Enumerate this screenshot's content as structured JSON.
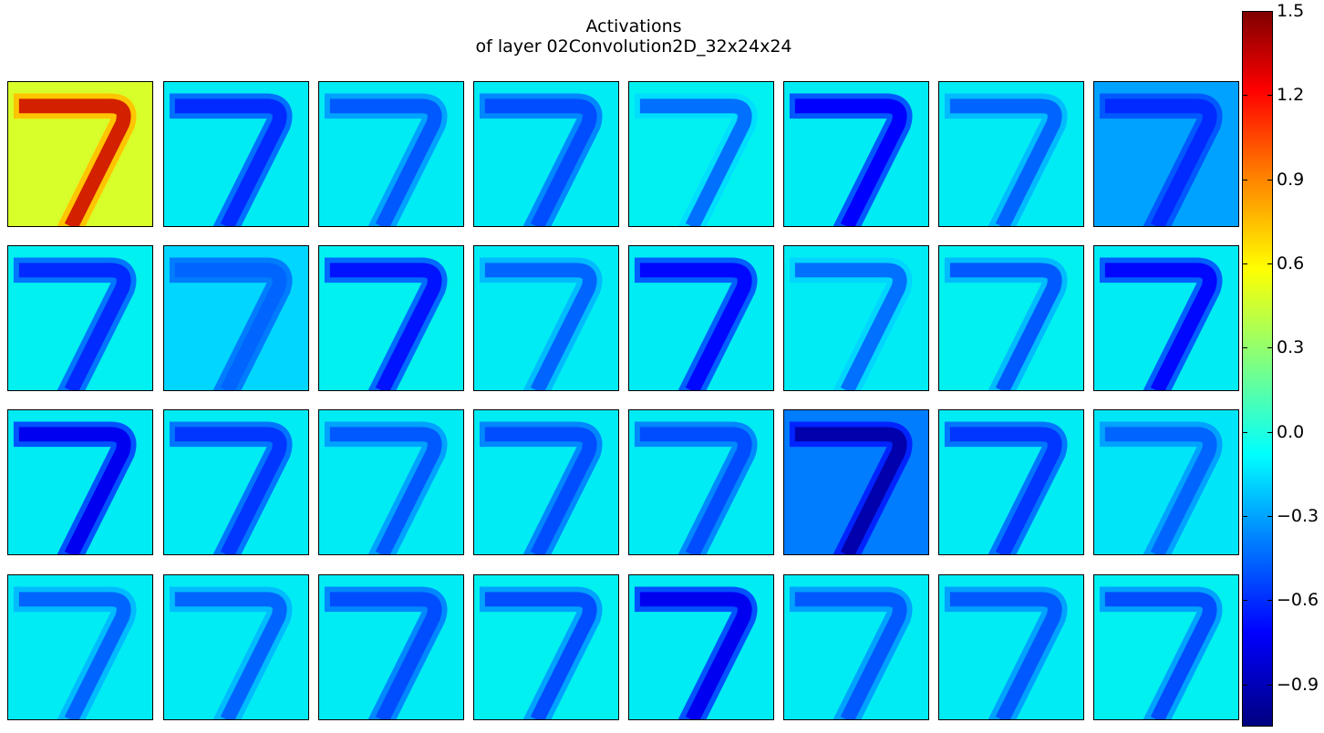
{
  "chart_data": {
    "type": "heatmap",
    "title_line1": "Activations",
    "title_line2": "of layer 02Convolution2D_32x24x24",
    "grid": {
      "rows": 4,
      "cols": 8,
      "count": 32
    },
    "panel_resolution": [
      24,
      24
    ],
    "colormap": "jet",
    "colorbar": {
      "min": -1.05,
      "max": 1.5,
      "ticks": [
        1.5,
        1.2,
        0.9,
        0.6,
        0.3,
        0.0,
        -0.3,
        -0.6,
        -0.9
      ],
      "tick_labels": [
        "1.5",
        "1.2",
        "0.9",
        "0.6",
        "0.3",
        "0.0",
        "−0.3",
        "−0.6",
        "−0.9"
      ]
    },
    "channels": [
      {
        "bg": 0.7,
        "stroke": 1.35
      },
      {
        "bg": 0.05,
        "stroke": -0.55
      },
      {
        "bg": 0.05,
        "stroke": -0.35
      },
      {
        "bg": 0.05,
        "stroke": -0.4
      },
      {
        "bg": 0.1,
        "stroke": -0.25
      },
      {
        "bg": 0.05,
        "stroke": -0.75
      },
      {
        "bg": 0.05,
        "stroke": -0.3
      },
      {
        "bg": -0.15,
        "stroke": -0.55
      },
      {
        "bg": 0.1,
        "stroke": -0.55
      },
      {
        "bg": -0.1,
        "stroke": -0.3
      },
      {
        "bg": 0.1,
        "stroke": -0.65
      },
      {
        "bg": 0.05,
        "stroke": -0.3
      },
      {
        "bg": 0.05,
        "stroke": -0.7
      },
      {
        "bg": 0.05,
        "stroke": -0.25
      },
      {
        "bg": 0.1,
        "stroke": -0.35
      },
      {
        "bg": 0.05,
        "stroke": -0.7
      },
      {
        "bg": 0.05,
        "stroke": -0.8
      },
      {
        "bg": 0.05,
        "stroke": -0.5
      },
      {
        "bg": 0.05,
        "stroke": -0.35
      },
      {
        "bg": 0.05,
        "stroke": -0.4
      },
      {
        "bg": 0.05,
        "stroke": -0.4
      },
      {
        "bg": -0.2,
        "stroke": -0.95
      },
      {
        "bg": 0.05,
        "stroke": -0.5
      },
      {
        "bg": 0.0,
        "stroke": -0.3
      },
      {
        "bg": 0.05,
        "stroke": -0.3
      },
      {
        "bg": 0.05,
        "stroke": -0.3
      },
      {
        "bg": 0.05,
        "stroke": -0.4
      },
      {
        "bg": 0.1,
        "stroke": -0.4
      },
      {
        "bg": 0.05,
        "stroke": -0.8
      },
      {
        "bg": 0.05,
        "stroke": -0.35
      },
      {
        "bg": 0.05,
        "stroke": -0.35
      },
      {
        "bg": 0.1,
        "stroke": -0.4
      }
    ]
  }
}
